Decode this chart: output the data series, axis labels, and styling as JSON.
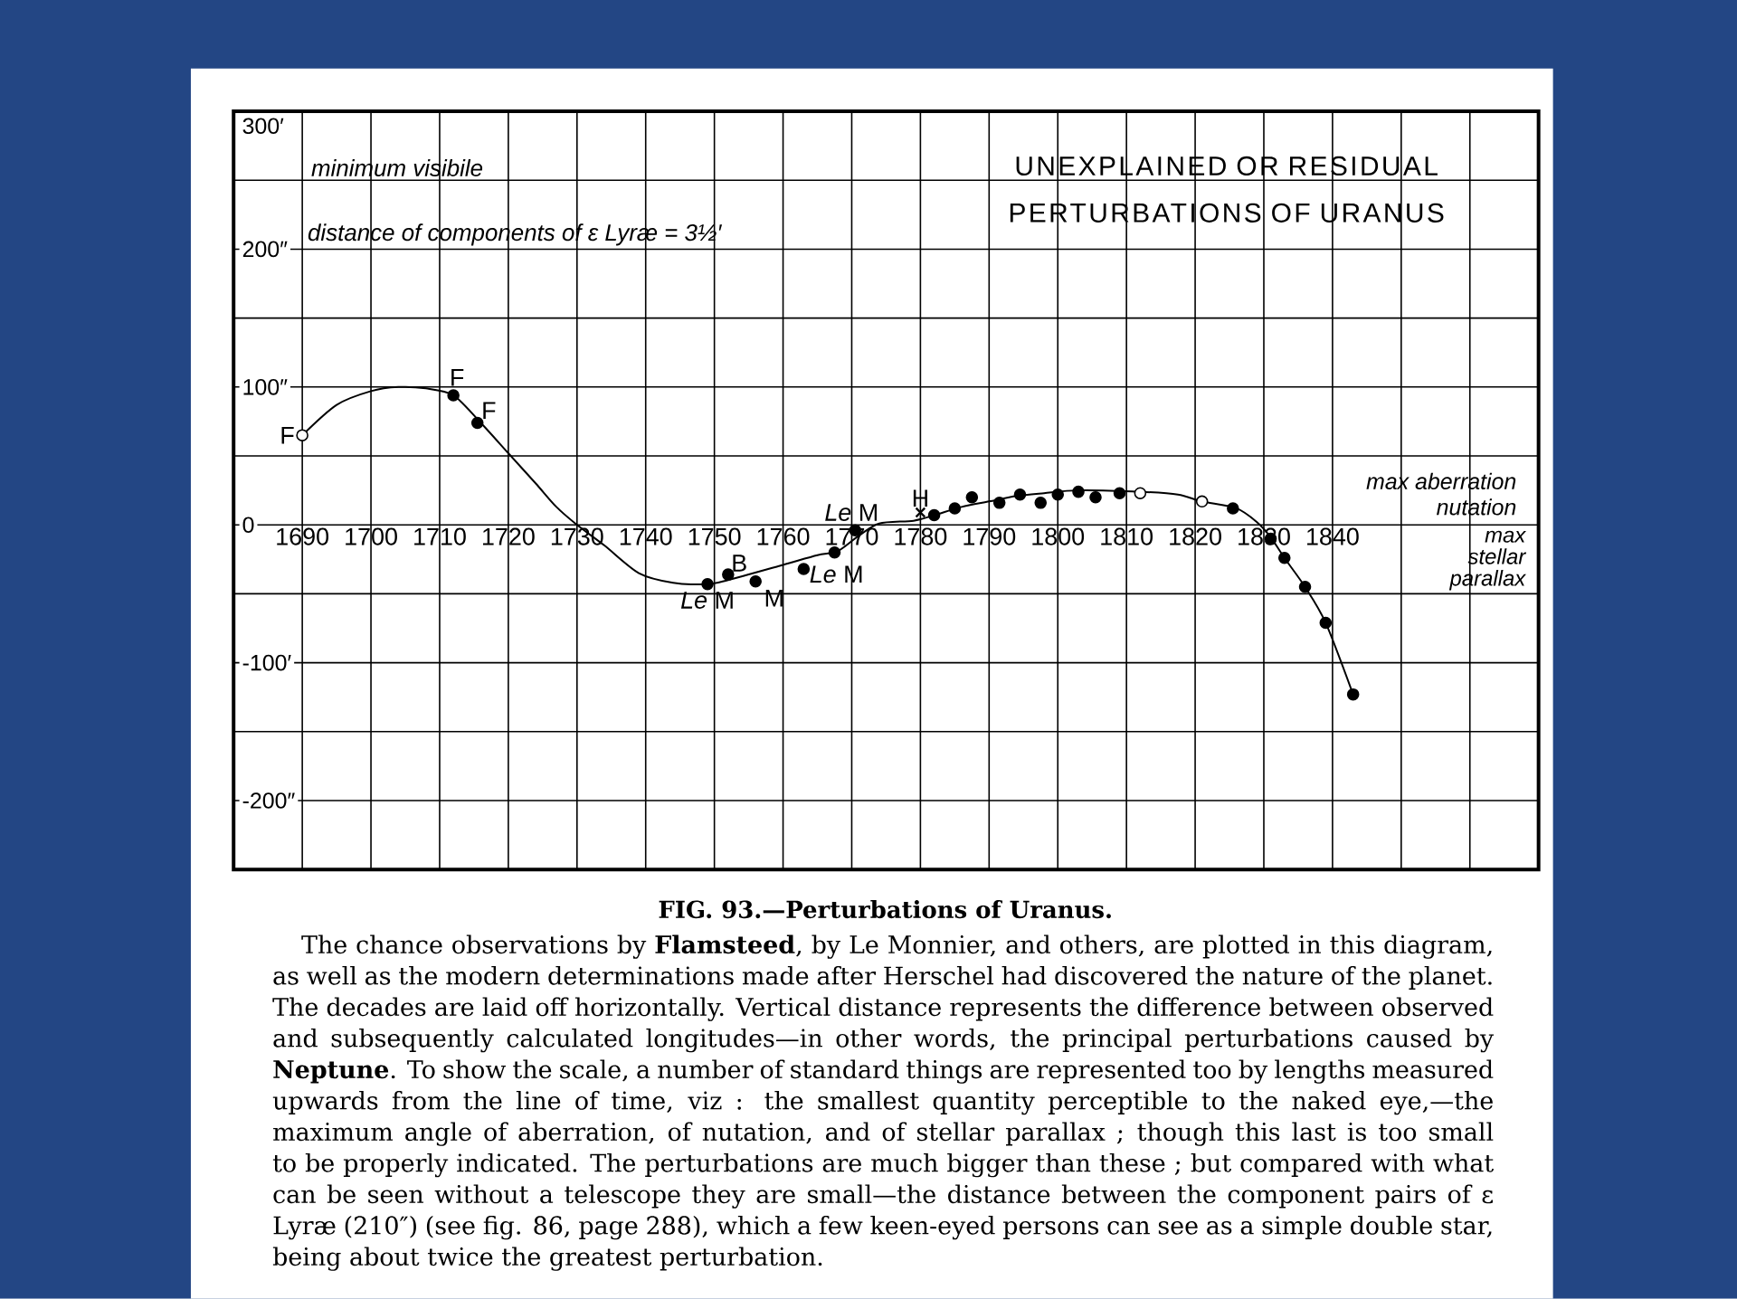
{
  "chart_data": {
    "type": "scatter",
    "title": "UNEXPLAINED OR RESIDUAL PERTURBATIONS OF URANUS",
    "xlim": [
      1680,
      1870
    ],
    "ylim": [
      -250,
      300
    ],
    "xticks": [
      1690,
      1700,
      1710,
      1720,
      1730,
      1740,
      1750,
      1760,
      1770,
      1780,
      1790,
      1800,
      1810,
      1820,
      1830,
      1840,
      {
        "value": 1850,
        "label": null
      },
      {
        "value": 1860,
        "label": null
      }
    ],
    "yticks": [
      {
        "value": 300,
        "label": "300′"
      },
      {
        "value": 250,
        "label": null
      },
      {
        "value": 200,
        "label": "200″"
      },
      {
        "value": 150,
        "label": null
      },
      {
        "value": 100,
        "label": "100″"
      },
      {
        "value": 50,
        "label": null
      },
      0,
      {
        "value": -50,
        "label": null
      },
      {
        "value": -100,
        "label": "-100′"
      },
      {
        "value": -150,
        "label": null
      },
      {
        "value": -200,
        "label": "-200″"
      }
    ],
    "grid": true,
    "series": [
      {
        "type": "line",
        "color": "#000000",
        "marker": "none",
        "x": [
          1690,
          1695,
          1700,
          1704,
          1708,
          1712,
          1716,
          1720,
          1724,
          1727,
          1730,
          1734,
          1739,
          1744,
          1749,
          1752,
          1760,
          1765,
          1768,
          1771,
          1774,
          1779,
          1782,
          1786,
          1790,
          1794,
          1798,
          1803,
          1812,
          1817.5,
          1821,
          1826,
          1829,
          1831,
          1833,
          1836,
          1839,
          1843
        ],
        "values": [
          65,
          87,
          97,
          100,
          99,
          94,
          74,
          52,
          30,
          13,
          0,
          -15,
          -35,
          -42,
          -43,
          -40,
          -29,
          -22,
          -19,
          -8,
          1,
          3,
          7,
          13,
          17,
          21,
          23,
          25,
          24,
          22,
          17,
          12,
          2,
          -9,
          -24,
          -45,
          -71,
          -123
        ]
      },
      {
        "color": "#000000",
        "marker": "circle",
        "x": [
          1712,
          1715.5,
          1749,
          1752,
          1756,
          1763,
          1767.5,
          1770.5,
          1782,
          1785,
          1787.5,
          1791.5,
          1794.5,
          1797.5,
          1800,
          1803,
          1805.5,
          1809,
          1825.5,
          1831,
          1833,
          1836,
          1839,
          1843
        ],
        "values": [
          94,
          74,
          -43,
          -36,
          -41,
          -32,
          -20,
          -4,
          7,
          12,
          20,
          16,
          22,
          16,
          22,
          24,
          20,
          23,
          12,
          -10,
          -24,
          -45,
          -71,
          -123
        ]
      },
      {
        "color": "#ffffff",
        "marker": "circle",
        "x": [
          1690,
          1812,
          1821
        ],
        "values": [
          65,
          23,
          17
        ]
      },
      {
        "color": "#000000",
        "marker": "cross",
        "x": [
          1780
        ],
        "values": [
          9
        ]
      }
    ],
    "annotations": [
      {
        "text": "F",
        "x": 1690,
        "y": 65
      },
      {
        "text": "F",
        "x": 1712,
        "y": 94
      },
      {
        "text": "F",
        "x": 1715.5,
        "y": 74
      },
      {
        "text": "*Le* M",
        "x": 1749,
        "y": -43
      },
      {
        "text": "B",
        "x": 1752,
        "y": -36
      },
      {
        "text": "M",
        "x": 1756,
        "y": -41
      },
      {
        "text": "*Le* M",
        "x": 1763,
        "y": -32
      },
      {
        "text": "*Le* M",
        "x": 1770.5,
        "y": -4
      },
      {
        "text": "H",
        "x": 1780,
        "y": 9
      },
      "minimum visibile",
      "distance of components of ε Lyræ = 3½′",
      "max aberration",
      "nutation",
      "max stellar parallax",
      "FIG. 93.—Perturbations of Uranus.",
      "The chance observations by **Flamsteed**, by Le Monnier, and others, are plotted in this diagram, as well as the modern determinations made after Herschel had discovered the nature of the planet. The decades are laid off horizontally. Vertical distance represents the difference between observed and subsequently calculated longitudes—in other words, the principal perturbations caused by **Neptune**. To show the scale, a number of standard things are represented too by lengths measured upwards from the line of time, viz : the smallest quantity perceptible to the naked eye,—the maximum angle of aberration, of nutation, and of stellar parallax ; though this last is too small to be properly indicated. The perturbations are much bigger than these ; but compared with what can be seen without a telescope they are small—the distance between the component pairs of ε Lyræ (210″) (see fig. 86, page 288), which a few keen-eyed persons can see as a simple double star, being about twice the greatest perturbation."
    ]
  }
}
